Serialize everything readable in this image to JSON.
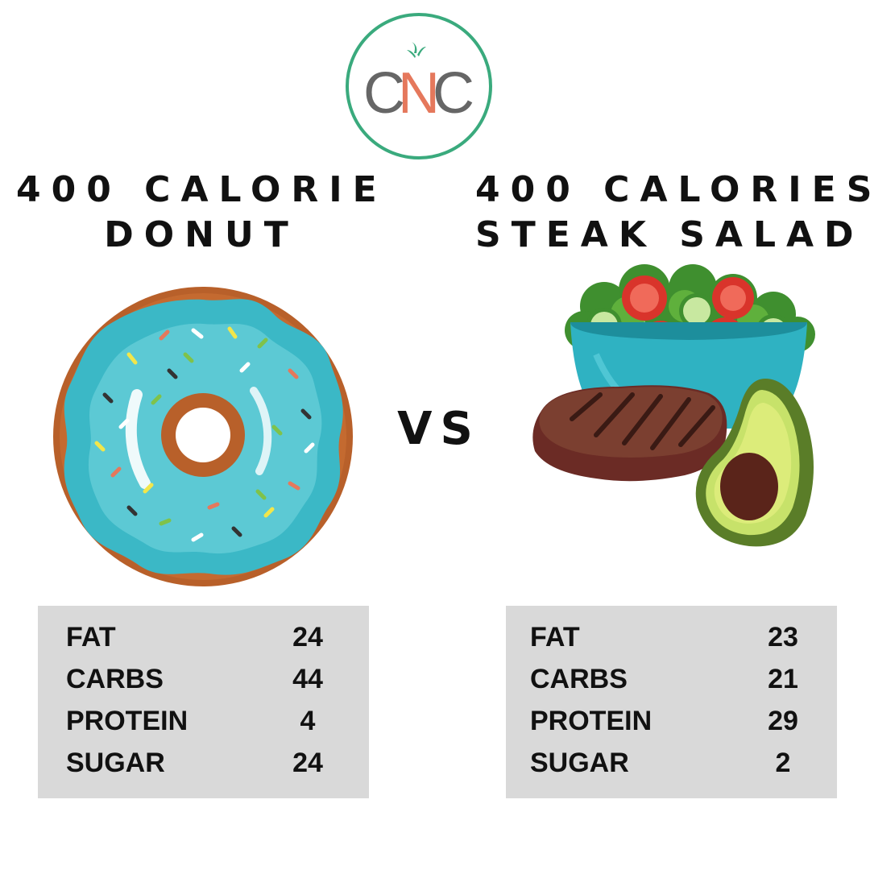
{
  "logo": {
    "text_parts": [
      "C",
      "N",
      "C"
    ],
    "ring_color": "#3aaa7d",
    "letter_color": "#666666",
    "accent_color": "#e5785c"
  },
  "left": {
    "title_lines": [
      "400 CALORIE",
      "DONUT"
    ],
    "nutrition": [
      {
        "label": "FAT",
        "value": "24"
      },
      {
        "label": "CARBS",
        "value": "44"
      },
      {
        "label": "PROTEIN",
        "value": "4"
      },
      {
        "label": "SUGAR",
        "value": "24"
      }
    ]
  },
  "vs_label": "VS",
  "right": {
    "title_lines": [
      "400 CALORIES",
      "STEAK SALAD"
    ],
    "nutrition": [
      {
        "label": "FAT",
        "value": "23"
      },
      {
        "label": "CARBS",
        "value": "21"
      },
      {
        "label": "PROTEIN",
        "value": "29"
      },
      {
        "label": "SUGAR",
        "value": "2"
      }
    ]
  },
  "colors": {
    "table_bg": "#d9d9d9",
    "text": "#111111",
    "donut_icing": "#3bb8c6",
    "donut_dough": "#b8602a"
  }
}
